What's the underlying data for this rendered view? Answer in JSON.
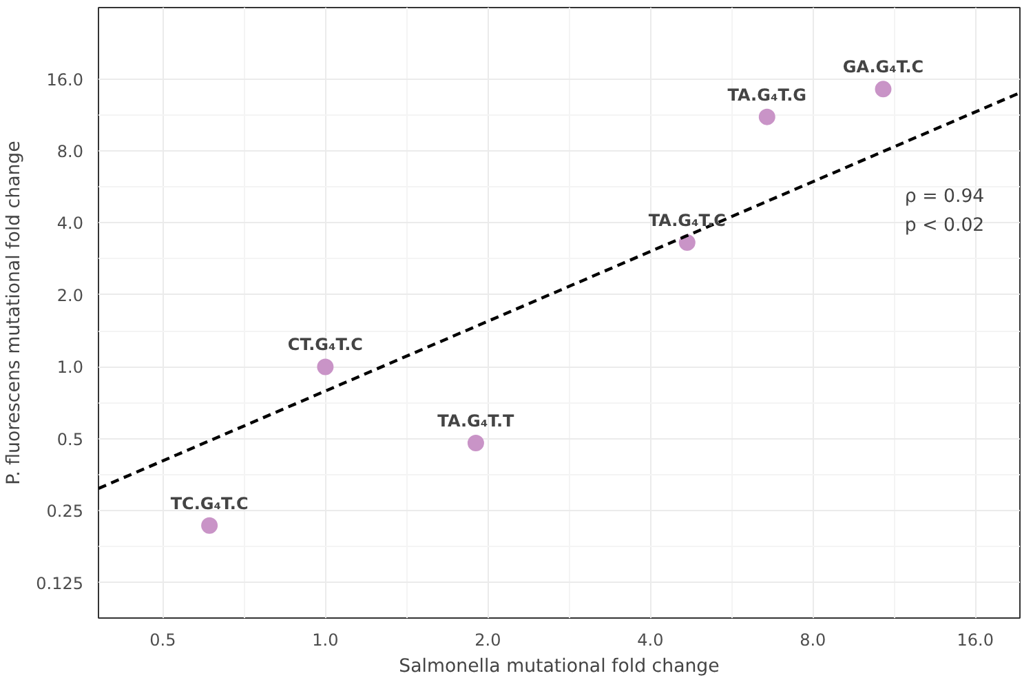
{
  "chart_data": {
    "type": "scatter",
    "xlabel": "Salmonella mutational fold change",
    "ylabel": "P. fluorescens mutational fold change",
    "log": "xy",
    "grid": true,
    "xlim": [
      0.38,
      19.35
    ],
    "ylim": [
      0.089,
      31.8
    ],
    "xticks": [
      0.5,
      {
        "value": 1,
        "label": "1.0"
      },
      {
        "value": 2,
        "label": "2.0"
      },
      {
        "value": 4,
        "label": "4.0"
      },
      {
        "value": 8,
        "label": "8.0"
      },
      {
        "value": 16,
        "label": "16.0"
      }
    ],
    "yticks": [
      0.125,
      0.25,
      0.5,
      {
        "value": 1,
        "label": "1.0"
      },
      {
        "value": 2,
        "label": "2.0"
      },
      {
        "value": 4,
        "label": "4.0"
      },
      {
        "value": 8,
        "label": "8.0"
      },
      {
        "value": 16,
        "label": "16.0"
      }
    ],
    "series": [
      {
        "marker": "circle",
        "color": "#c994c7",
        "x": [
          0.61,
          1.0,
          1.9,
          4.68,
          6.58,
          10.8
        ],
        "values": [
          0.217,
          1.0,
          0.48,
          3.31,
          11.1,
          14.5
        ]
      },
      {
        "type": "line",
        "color": "#000000",
        "line_style": "dashed",
        "x": [
          0.38,
          19.35
        ],
        "values": [
          0.31,
          14.0
        ]
      }
    ],
    "annotations": [
      {
        "text": "TC.G₄T.C",
        "x": 0.61,
        "y": 0.217
      },
      {
        "text": "CT.G₄T.C",
        "x": 1.0,
        "y": 1.0
      },
      {
        "text": "TA.G₄T.T",
        "x": 1.9,
        "y": 0.48
      },
      {
        "text": "TA.G₄T.C",
        "x": 4.68,
        "y": 3.31
      },
      {
        "text": "TA.G₄T.G",
        "x": 6.58,
        "y": 11.1
      },
      {
        "text": "GA.G₄T.C",
        "x": 10.8,
        "y": 14.5
      },
      "ρ = 0.94",
      "p < 0.02"
    ]
  }
}
